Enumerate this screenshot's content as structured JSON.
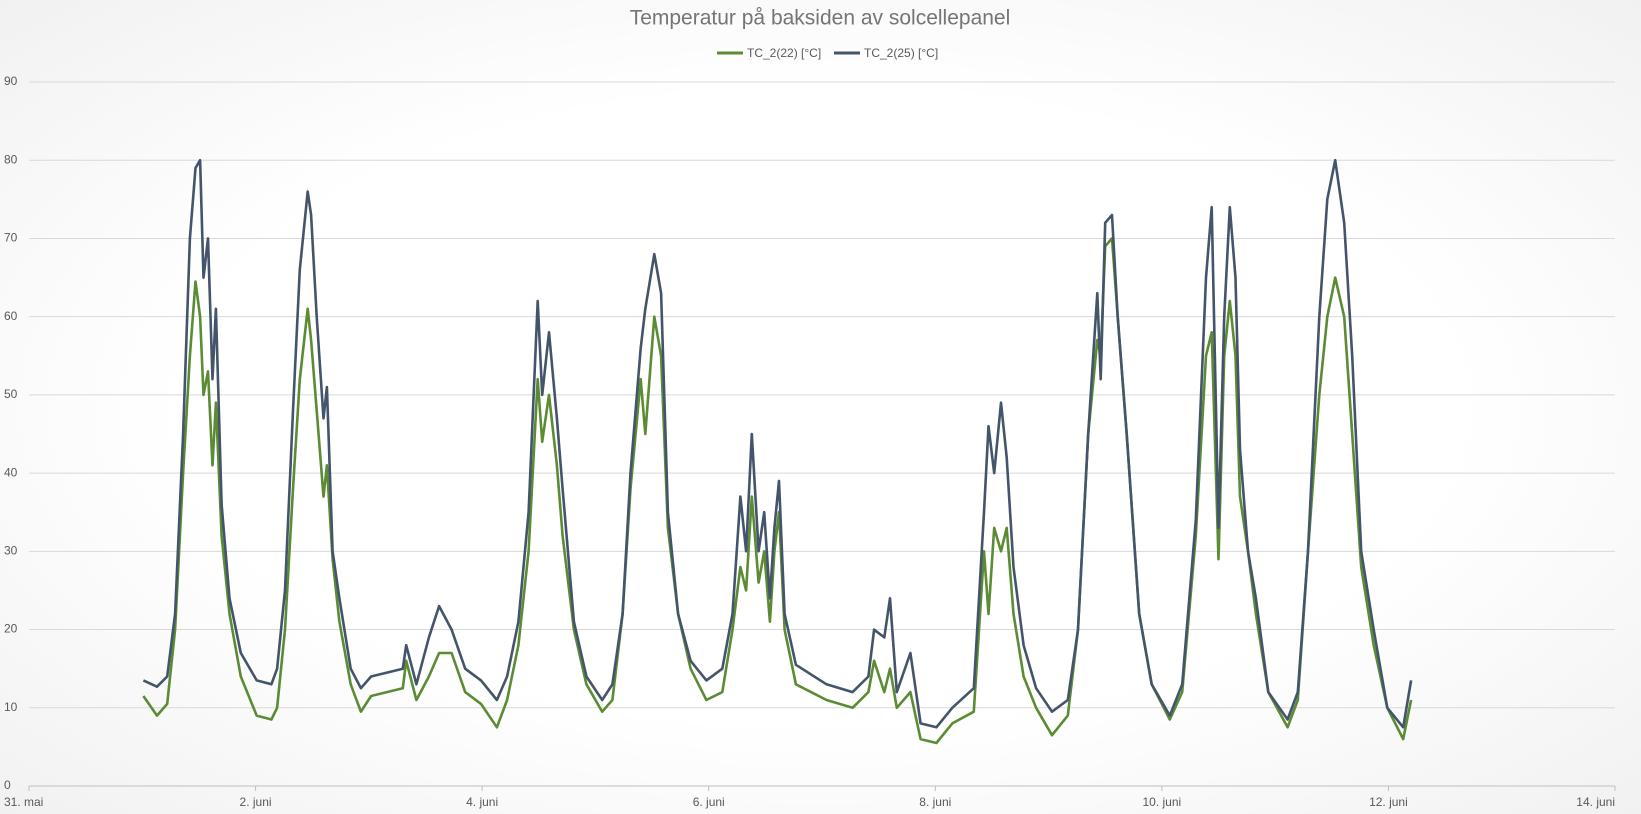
{
  "chart_data": {
    "type": "line",
    "title": "Temperatur på baksiden av solcellepanel",
    "x": [
      1.01,
      1.13,
      1.22,
      1.29,
      1.36,
      1.42,
      1.47,
      1.51,
      1.54,
      1.58,
      1.62,
      1.65,
      1.7,
      1.77,
      1.87,
      2.01,
      2.14,
      2.19,
      2.26,
      2.33,
      2.39,
      2.46,
      2.49,
      2.54,
      2.6,
      2.63,
      2.68,
      2.74,
      2.84,
      2.93,
      3.02,
      3.3,
      3.33,
      3.42,
      3.53,
      3.62,
      3.73,
      3.85,
      3.99,
      4.13,
      4.22,
      4.32,
      4.41,
      4.49,
      4.53,
      4.59,
      4.66,
      4.71,
      4.81,
      4.92,
      5.06,
      5.15,
      5.24,
      5.31,
      5.4,
      5.44,
      5.52,
      5.58,
      5.64,
      5.73,
      5.84,
      5.98,
      6.12,
      6.21,
      6.28,
      6.33,
      6.38,
      6.44,
      6.49,
      6.54,
      6.58,
      6.62,
      6.67,
      6.77,
      7.04,
      7.27,
      7.41,
      7.46,
      7.55,
      7.6,
      7.66,
      7.78,
      7.87,
      8.01,
      8.15,
      8.34,
      8.43,
      8.47,
      8.52,
      8.58,
      8.63,
      8.69,
      8.78,
      8.89,
      9.03,
      9.17,
      9.26,
      9.35,
      9.43,
      9.46,
      9.5,
      9.56,
      9.61,
      9.69,
      9.8,
      9.91,
      10.07,
      10.18,
      10.3,
      10.39,
      10.44,
      10.5,
      10.55,
      10.6,
      10.65,
      10.69,
      10.76,
      10.83,
      10.94,
      11.11,
      11.2,
      11.29,
      11.39,
      11.46,
      11.53,
      11.61,
      11.68,
      11.76,
      11.87,
      11.99,
      12.13,
      12.2
    ],
    "series": [
      {
        "name": "TC_2(22) [°C]",
        "color": "#5b8c33",
        "values": [
          11.5,
          9,
          10.5,
          20,
          40,
          55,
          64.5,
          60,
          50,
          53,
          41,
          49,
          32,
          22,
          14,
          9,
          8.5,
          10,
          20,
          38,
          52,
          61,
          57,
          48,
          37,
          41,
          29,
          21,
          13,
          9.5,
          11.5,
          12.5,
          16,
          11,
          14,
          17,
          17,
          12,
          10.5,
          7.5,
          11,
          18,
          30,
          52,
          44,
          50,
          41,
          32,
          20,
          13,
          9.5,
          11,
          22,
          38,
          52,
          45,
          60,
          55,
          33,
          22,
          15,
          11,
          12,
          20,
          28,
          25,
          37,
          26,
          30,
          21,
          30,
          35,
          20,
          13,
          11,
          10,
          12,
          16,
          12,
          15,
          10,
          12,
          6,
          5.5,
          8,
          9.5,
          30,
          22,
          33,
          30,
          33,
          22,
          14,
          10,
          6.5,
          9,
          20,
          45,
          57,
          55,
          69,
          70,
          60,
          45,
          22,
          13,
          8.5,
          12,
          32,
          55,
          58,
          29,
          55,
          62,
          55,
          37,
          30,
          22,
          12,
          7.5,
          11,
          30,
          50,
          60,
          65,
          60,
          45,
          28,
          18,
          10,
          6,
          11
        ]
      },
      {
        "name": "TC_2(25) [°C]",
        "color": "#44546a",
        "values": [
          13.5,
          12.7,
          14,
          22,
          45,
          70,
          79,
          80,
          65,
          70,
          52,
          61,
          36,
          24,
          17,
          13.5,
          13,
          15,
          25,
          48,
          66,
          76,
          73,
          60,
          47,
          51,
          30,
          24,
          15,
          12.5,
          14,
          15,
          18,
          13,
          19,
          23,
          20,
          15,
          13.5,
          11,
          14,
          21,
          35,
          62,
          50,
          58,
          47,
          38,
          21,
          14,
          11,
          13,
          22,
          40,
          56,
          61,
          68,
          63,
          35,
          22,
          16,
          13.5,
          15,
          22,
          37,
          30,
          45,
          30,
          35,
          24,
          33,
          39,
          22,
          15.5,
          13,
          12,
          14,
          20,
          19,
          24,
          12,
          17,
          8,
          7.5,
          10,
          12.5,
          35,
          46,
          40,
          49,
          42,
          28,
          18,
          12.5,
          9.5,
          11,
          20,
          45,
          63,
          52,
          72,
          73,
          60,
          45,
          22,
          13,
          9,
          13,
          34,
          65,
          74,
          33,
          60,
          74,
          65,
          43,
          30,
          24,
          12,
          8.5,
          12,
          30,
          60,
          75,
          80,
          72,
          55,
          30,
          20,
          10,
          7.5,
          13.5
        ]
      }
    ],
    "xlim": [
      0,
      14
    ],
    "xticks": [
      {
        "value": 0,
        "label": "31. mai"
      },
      {
        "value": 2,
        "label": "2. juni"
      },
      {
        "value": 4,
        "label": "4. juni"
      },
      {
        "value": 6,
        "label": "6. juni"
      },
      {
        "value": 8,
        "label": "8. juni"
      },
      {
        "value": 10,
        "label": "10. juni"
      },
      {
        "value": 12,
        "label": "12. juni"
      },
      {
        "value": 14,
        "label": "14. juni"
      }
    ],
    "ylim": [
      0,
      90
    ],
    "yticks": [
      0,
      10,
      20,
      30,
      40,
      50,
      60,
      70,
      80,
      90
    ],
    "grid": true,
    "legend": "top"
  }
}
